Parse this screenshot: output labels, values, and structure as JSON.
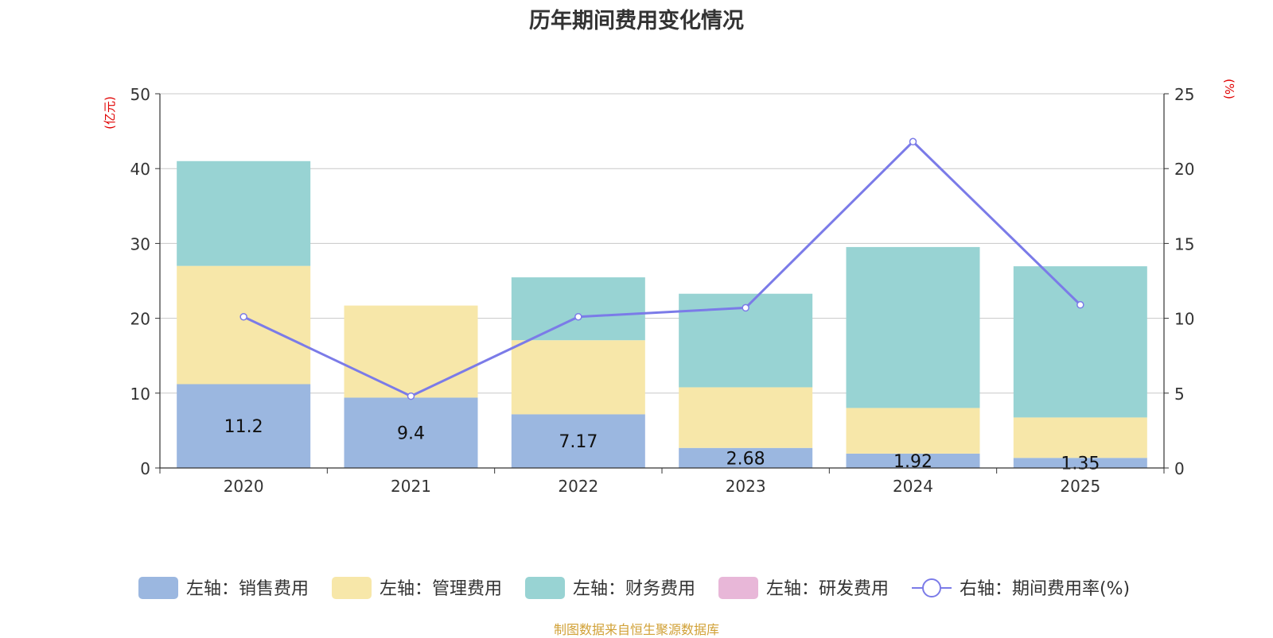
{
  "title": "历年期间费用变化情况",
  "source": "制图数据来自恒生聚源数据库",
  "chart_data": {
    "type": "bar",
    "stacked": true,
    "categories": [
      "2020",
      "2021",
      "2022",
      "2023",
      "2024",
      "2025"
    ],
    "left_axis": {
      "label": "(亿元)",
      "min": 0,
      "max": 50,
      "ticks": [
        0,
        10,
        20,
        30,
        40,
        50
      ]
    },
    "right_axis": {
      "label": "(%)",
      "min": 0,
      "max": 25,
      "ticks": [
        0,
        5,
        10,
        15,
        20,
        25
      ]
    },
    "series": [
      {
        "name": "左轴：销售费用",
        "type": "bar",
        "axis": "left",
        "color": "#9bb7e0",
        "values": [
          11.2,
          9.4,
          7.17,
          2.68,
          1.92,
          1.35
        ],
        "labels": [
          "11.2",
          "9.4",
          "7.17",
          "2.68",
          "1.92",
          "1.35"
        ]
      },
      {
        "name": "左轴：管理费用",
        "type": "bar",
        "axis": "left",
        "color": "#f7e7a9",
        "values": [
          15.8,
          12.3,
          9.9,
          8.1,
          6.1,
          5.4
        ]
      },
      {
        "name": "左轴：财务费用",
        "type": "bar",
        "axis": "left",
        "color": "#98d3d3",
        "values": [
          14.0,
          0,
          8.4,
          12.5,
          21.5,
          20.2
        ]
      },
      {
        "name": "左轴：研发费用",
        "type": "bar",
        "axis": "left",
        "color": "#e8b7d8",
        "values": [
          0,
          0,
          0,
          0,
          0,
          0
        ]
      },
      {
        "name": "右轴：期间费用率(%)",
        "type": "line",
        "axis": "right",
        "color": "#7b7be8",
        "values": [
          10.1,
          4.8,
          10.1,
          10.7,
          21.8,
          10.9
        ]
      }
    ],
    "legend_position": "bottom-center"
  }
}
